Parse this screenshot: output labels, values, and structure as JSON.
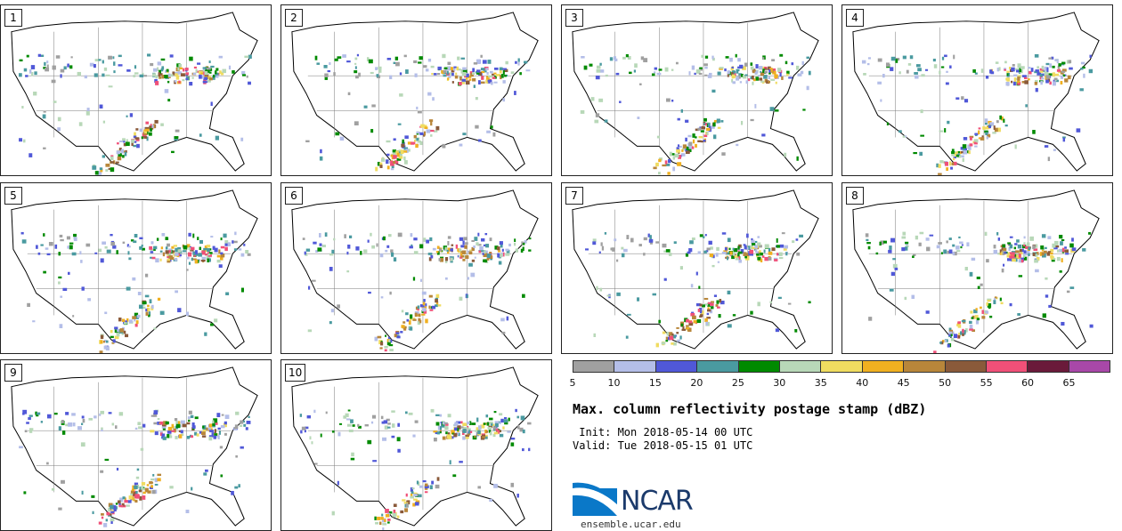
{
  "members": [
    {
      "label": "1"
    },
    {
      "label": "2"
    },
    {
      "label": "3"
    },
    {
      "label": "4"
    },
    {
      "label": "5"
    },
    {
      "label": "6"
    },
    {
      "label": "7"
    },
    {
      "label": "8"
    },
    {
      "label": "9"
    },
    {
      "label": "10"
    }
  ],
  "colorbar": {
    "colors": [
      "#a0a0a0",
      "#b4bee8",
      "#5058d8",
      "#4a9aa0",
      "#008a00",
      "#b8d8b8",
      "#f0dc60",
      "#f0b020",
      "#b8863a",
      "#8a5a3a",
      "#f05078",
      "#6a1a3a",
      "#a848a8"
    ],
    "ticks": [
      "5",
      "10",
      "15",
      "20",
      "25",
      "30",
      "35",
      "40",
      "45",
      "50",
      "55",
      "60",
      "65"
    ]
  },
  "title": "Max. column reflectivity postage stamp (dBZ)",
  "init_line": " Init: Mon 2018-05-14 00 UTC",
  "valid_line": "Valid: Tue 2018-05-15 01 UTC",
  "logo": {
    "text": "NCAR",
    "colors": [
      "#1b3a6b",
      "#0a78c8"
    ]
  },
  "site": "ensemble.ucar.edu"
}
